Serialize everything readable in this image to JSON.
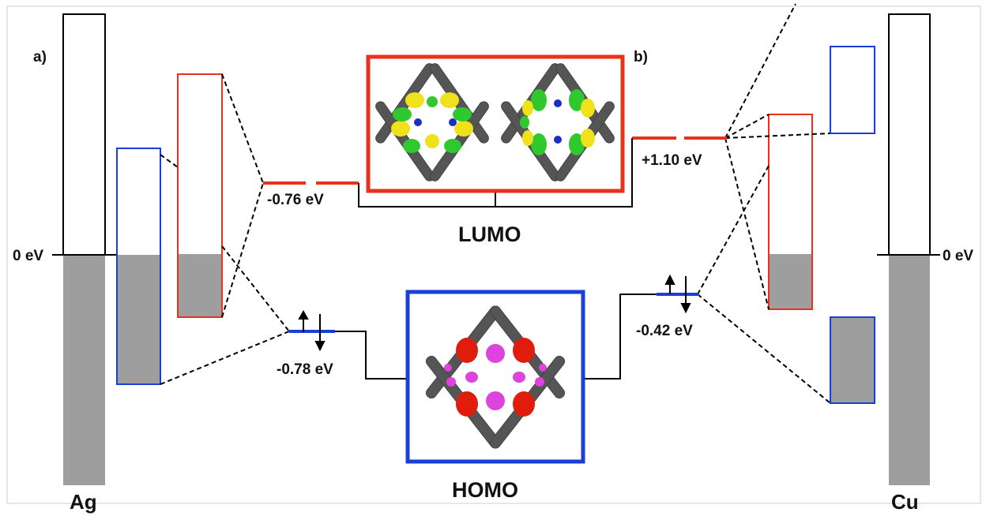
{
  "panels": {
    "left_tag": "a)",
    "right_tag": "b)"
  },
  "metals": {
    "left_name": "Ag",
    "right_name": "Cu",
    "left_fermi_label": "0 eV",
    "right_fermi_label": "0 eV"
  },
  "orbitals": {
    "lumo_label": "LUMO",
    "homo_label": "HOMO",
    "lumo_ag_energy": "-0.76 eV",
    "lumo_cu_energy": "+1.10 eV",
    "homo_ag_energy": "-0.78 eV",
    "homo_cu_energy": "-0.42 eV"
  },
  "colors": {
    "lumo": "#e8321c",
    "homo": "#1a3fd6",
    "filled": "#9e9e9e",
    "lumo_lobe_a": "#f0e21a",
    "lumo_lobe_b": "#2fc92f",
    "homo_lobe_a": "#e01d0d",
    "homo_lobe_b": "#dd44dd",
    "nitrogen": "#1a2fc8",
    "carbon": "#555555"
  }
}
